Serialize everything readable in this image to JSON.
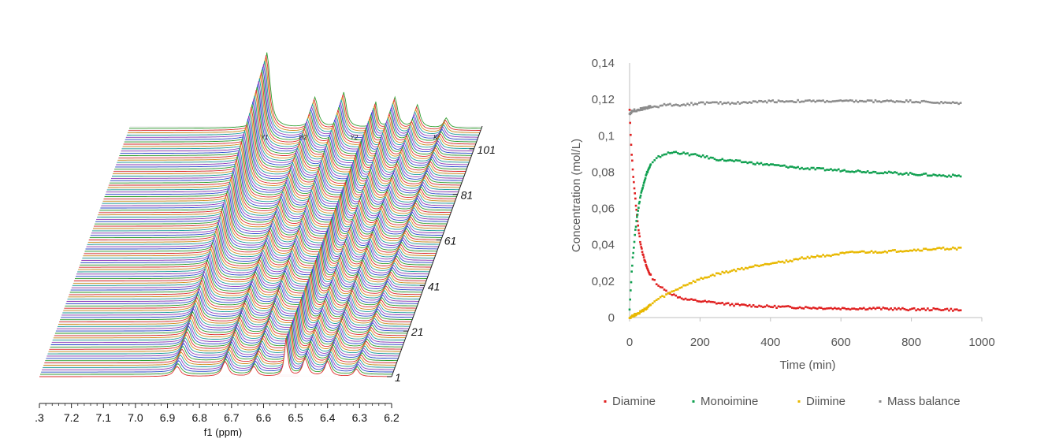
{
  "chart_data": [
    {
      "type": "line",
      "subtype": "stacked-nmr-spectra",
      "xlabel": "f1 (ppm)",
      "x_ticks": [
        ".3",
        "7.2",
        "7.1",
        "7.0",
        "6.9",
        "6.8",
        "6.7",
        "6.6",
        "6.5",
        "6.4",
        "6.3",
        "6.2"
      ],
      "xlim": [
        7.3,
        6.2
      ],
      "x_reversed": true,
      "spectrum_ticks": [
        "101",
        "81",
        "61",
        "41",
        "21",
        "1"
      ],
      "spectrum_count": 110,
      "peak_labels": [
        "Y1",
        "H2",
        "Y2",
        "K"
      ],
      "peaks_ppm": [
        6.87,
        6.72,
        6.63,
        6.53,
        6.47,
        6.4,
        6.31
      ],
      "colors": [
        "#e03030",
        "#30a030",
        "#3050d0",
        "#9040c0",
        "#20a0a0",
        "#d09020"
      ]
    },
    {
      "type": "scatter",
      "xlabel": "Time (min)",
      "ylabel": "Concentration (mol/L)",
      "xlim": [
        0,
        1000
      ],
      "ylim": [
        0,
        0.14
      ],
      "x_ticks": [
        "0",
        "200",
        "400",
        "600",
        "800",
        "1000"
      ],
      "y_ticks": [
        "0",
        "0,02",
        "0,04",
        "0,06",
        "0,08",
        "0,1",
        "0,12",
        "0,14"
      ],
      "grid": false,
      "legend_position": "bottom",
      "series": [
        {
          "name": "Diamine",
          "color": "#e02020",
          "points": [
            [
              0,
              0.114
            ],
            [
              3,
              0.1
            ],
            [
              6,
              0.09
            ],
            [
              10,
              0.079
            ],
            [
              15,
              0.068
            ],
            [
              20,
              0.058
            ],
            [
              25,
              0.049
            ],
            [
              30,
              0.042
            ],
            [
              40,
              0.033
            ],
            [
              50,
              0.027
            ],
            [
              60,
              0.023
            ],
            [
              80,
              0.018
            ],
            [
              100,
              0.015
            ],
            [
              130,
              0.012
            ],
            [
              160,
              0.01
            ],
            [
              200,
              0.009
            ],
            [
              250,
              0.008
            ],
            [
              300,
              0.007
            ],
            [
              400,
              0.006
            ],
            [
              500,
              0.0055
            ],
            [
              600,
              0.005
            ],
            [
              700,
              0.005
            ],
            [
              800,
              0.0045
            ],
            [
              900,
              0.0045
            ],
            [
              940,
              0.004
            ]
          ]
        },
        {
          "name": "Monoimine",
          "color": "#10a050",
          "points": [
            [
              0,
              0.005
            ],
            [
              3,
              0.015
            ],
            [
              6,
              0.025
            ],
            [
              10,
              0.035
            ],
            [
              15,
              0.045
            ],
            [
              20,
              0.054
            ],
            [
              25,
              0.06
            ],
            [
              30,
              0.066
            ],
            [
              40,
              0.074
            ],
            [
              50,
              0.08
            ],
            [
              60,
              0.084
            ],
            [
              80,
              0.088
            ],
            [
              100,
              0.09
            ],
            [
              130,
              0.091
            ],
            [
              160,
              0.09
            ],
            [
              200,
              0.089
            ],
            [
              250,
              0.087
            ],
            [
              300,
              0.086
            ],
            [
              400,
              0.084
            ],
            [
              500,
              0.082
            ],
            [
              600,
              0.081
            ],
            [
              700,
              0.08
            ],
            [
              800,
              0.079
            ],
            [
              900,
              0.078
            ],
            [
              940,
              0.078
            ]
          ]
        },
        {
          "name": "Diimine",
          "color": "#e8b800",
          "points": [
            [
              0,
              0.0
            ],
            [
              10,
              0.001
            ],
            [
              20,
              0.002
            ],
            [
              40,
              0.004
            ],
            [
              60,
              0.007
            ],
            [
              80,
              0.01
            ],
            [
              100,
              0.012
            ],
            [
              130,
              0.015
            ],
            [
              160,
              0.018
            ],
            [
              200,
              0.021
            ],
            [
              250,
              0.024
            ],
            [
              300,
              0.026
            ],
            [
              350,
              0.028
            ],
            [
              400,
              0.03
            ],
            [
              450,
              0.031
            ],
            [
              500,
              0.033
            ],
            [
              550,
              0.034
            ],
            [
              600,
              0.035
            ],
            [
              650,
              0.036
            ],
            [
              700,
              0.036
            ],
            [
              800,
              0.037
            ],
            [
              900,
              0.038
            ],
            [
              940,
              0.038
            ]
          ]
        },
        {
          "name": "Mass balance",
          "color": "#8c8c8c",
          "points": [
            [
              0,
              0.112
            ],
            [
              5,
              0.113
            ],
            [
              10,
              0.114
            ],
            [
              20,
              0.114
            ],
            [
              40,
              0.115
            ],
            [
              60,
              0.116
            ],
            [
              80,
              0.116
            ],
            [
              100,
              0.117
            ],
            [
              150,
              0.117
            ],
            [
              200,
              0.118
            ],
            [
              300,
              0.118
            ],
            [
              400,
              0.119
            ],
            [
              500,
              0.119
            ],
            [
              600,
              0.119
            ],
            [
              700,
              0.119
            ],
            [
              800,
              0.119
            ],
            [
              900,
              0.118
            ],
            [
              940,
              0.118
            ]
          ]
        }
      ]
    }
  ]
}
